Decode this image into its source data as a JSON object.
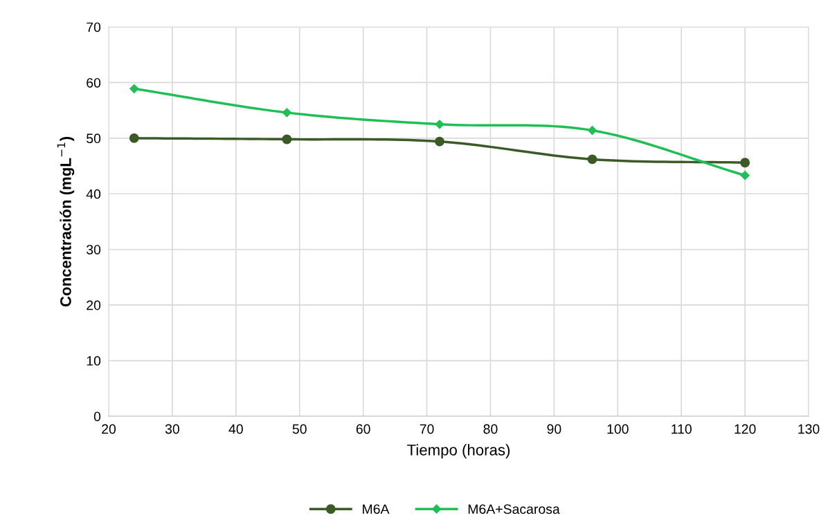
{
  "chart_data": {
    "type": "line",
    "xlabel": "Tiempo (horas)",
    "ylabel": "Concentración (mgL$^{−1}$)",
    "x": [
      24,
      48,
      72,
      96,
      120
    ],
    "series": [
      {
        "name": "M6A",
        "color": "#3b5a26",
        "marker": "circle",
        "values": [
          50.0,
          49.8,
          49.4,
          46.2,
          45.6
        ]
      },
      {
        "name": "M6A+Sacarosa",
        "color": "#1fbf55",
        "marker": "diamond",
        "values": [
          58.9,
          54.6,
          52.5,
          51.4,
          43.3
        ]
      }
    ],
    "xlim": [
      20,
      130
    ],
    "xticks": [
      20,
      30,
      40,
      50,
      60,
      70,
      80,
      90,
      100,
      110,
      120,
      130
    ],
    "ylim": [
      0,
      70
    ],
    "yticks": [
      0,
      10,
      20,
      30,
      40,
      50,
      60,
      70
    ],
    "grid": true,
    "legend": "bottom",
    "line_style": "solid"
  }
}
